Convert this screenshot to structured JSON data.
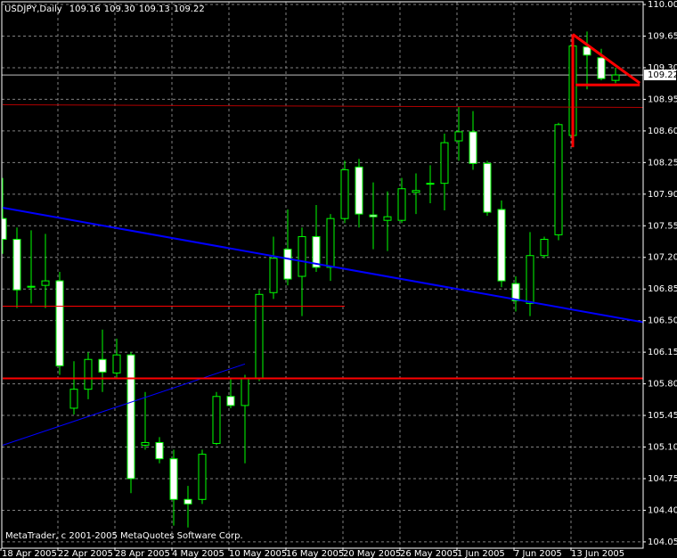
{
  "chart_data": {
    "type": "candlestick",
    "title": "USDJPY,Daily",
    "info": [
      "109.16",
      "109.30",
      "109.13",
      "109.22"
    ],
    "footer": "MetaTrader, c 2001-2005 MetaQuotes Software Corp.",
    "categories": [
      "18 Apr 2005",
      null,
      null,
      null,
      "22 Apr 2005",
      null,
      null,
      null,
      "28 Apr 2005",
      null,
      null,
      null,
      "4 May 2005",
      null,
      null,
      null,
      "10 May 2005",
      null,
      null,
      null,
      "16 May 2005",
      null,
      null,
      null,
      "20 May 2005",
      null,
      null,
      null,
      "26 May 2005",
      null,
      null,
      null,
      "1 Jun 2005",
      null,
      null,
      null,
      "7 Jun 2005",
      null,
      null,
      null,
      "13 Jun 2005",
      null,
      null,
      null
    ],
    "open": [
      107.63,
      107.4,
      106.87,
      106.89,
      106.94,
      105.53,
      105.74,
      106.07,
      105.92,
      106.12,
      105.12,
      105.15,
      104.97,
      104.52,
      104.52,
      105.14,
      105.66,
      105.56,
      105.86,
      106.81,
      107.29,
      106.99,
      107.43,
      107.09,
      107.63,
      108.2,
      107.67,
      107.61,
      107.61,
      107.92,
      108.01,
      108.02,
      108.49,
      108.59,
      108.24,
      107.73,
      106.91,
      106.69,
      107.22,
      107.45,
      108.55,
      109.53,
      109.41,
      109.16
    ],
    "high": [
      108.08,
      107.53,
      107.5,
      107.46,
      107.04,
      106.05,
      106.15,
      106.4,
      106.3,
      106.15,
      105.71,
      105.21,
      105.07,
      104.67,
      105.07,
      105.71,
      105.86,
      105.9,
      106.84,
      107.43,
      107.73,
      107.53,
      107.78,
      107.68,
      108.27,
      108.29,
      108.03,
      107.93,
      108.08,
      108.13,
      108.22,
      108.57,
      108.87,
      108.82,
      108.27,
      107.83,
      106.99,
      107.48,
      107.43,
      108.69,
      109.65,
      109.7,
      109.51,
      109.3
    ],
    "low": [
      107.24,
      106.64,
      106.69,
      106.64,
      105.9,
      105.46,
      105.63,
      105.71,
      105.86,
      104.59,
      105.07,
      104.92,
      104.23,
      104.21,
      104.47,
      105.12,
      105.53,
      104.92,
      105.83,
      106.74,
      106.89,
      106.55,
      107.04,
      106.94,
      107.58,
      107.53,
      107.29,
      107.27,
      107.58,
      107.68,
      107.8,
      107.72,
      108.27,
      108.17,
      107.66,
      106.87,
      106.6,
      106.55,
      107.19,
      107.39,
      108.42,
      109.06,
      109.16,
      109.13
    ],
    "close": [
      107.4,
      106.84,
      106.88,
      106.94,
      106.0,
      105.74,
      106.07,
      105.93,
      106.12,
      104.75,
      105.15,
      104.97,
      104.52,
      104.47,
      105.02,
      105.66,
      105.56,
      105.86,
      106.79,
      107.19,
      106.96,
      107.43,
      107.09,
      107.63,
      108.17,
      107.68,
      107.65,
      107.65,
      107.96,
      107.94,
      108.02,
      108.47,
      108.59,
      108.24,
      107.7,
      106.94,
      106.72,
      107.22,
      107.4,
      108.67,
      109.54,
      109.44,
      109.18,
      109.22
    ],
    "wick_color": "#00ff00",
    "bull_color": "#000000",
    "bear_color": "#ffffff",
    "ylim": [
      103.98,
      110.03
    ],
    "yticks": [
      {
        "value": 110.0,
        "label": "110.00"
      },
      109.65,
      {
        "value": 109.3,
        "label": "109.30"
      },
      108.95,
      {
        "value": 108.6,
        "label": "108.60"
      },
      108.25,
      {
        "value": 107.9,
        "label": "107.90"
      },
      107.55,
      {
        "value": 107.2,
        "label": "107.20"
      },
      106.85,
      {
        "value": 106.5,
        "label": "106.50"
      },
      106.15,
      {
        "value": 105.8,
        "label": "105.80"
      },
      105.45,
      {
        "value": 105.1,
        "label": "105.10"
      },
      104.75,
      {
        "value": 104.4,
        "label": "104.40"
      },
      104.05
    ],
    "price_line": 109.22,
    "grid": true,
    "trendlines": [
      {
        "color": "#0000ff",
        "width": 2,
        "x": [
          0,
          45
        ],
        "y": [
          107.75,
          106.48
        ]
      },
      {
        "color": "#0000ff",
        "width": 1,
        "x": [
          0,
          17
        ],
        "y": [
          105.12,
          106.02
        ]
      },
      {
        "color": "#b00000",
        "width": 1,
        "x": [
          0,
          45
        ],
        "y": [
          108.89,
          108.86
        ]
      },
      {
        "color": "#ff0000",
        "width": 1,
        "x": [
          0,
          24
        ],
        "y": [
          106.66,
          106.66
        ]
      },
      {
        "color": "#ff0000",
        "width": 2,
        "x": [
          0,
          45
        ],
        "y": [
          105.86,
          105.86
        ]
      },
      {
        "color": "#ff0000",
        "width": 3,
        "x": [
          40,
          44.7
        ],
        "y": [
          109.67,
          109.13
        ]
      },
      {
        "color": "#ff0000",
        "width": 3,
        "x": [
          40.2,
          44.7
        ],
        "y": [
          109.11,
          109.11
        ]
      },
      {
        "color": "#ff0000",
        "width": 3,
        "x": [
          40,
          40
        ],
        "y": [
          109.67,
          108.42
        ]
      }
    ]
  }
}
